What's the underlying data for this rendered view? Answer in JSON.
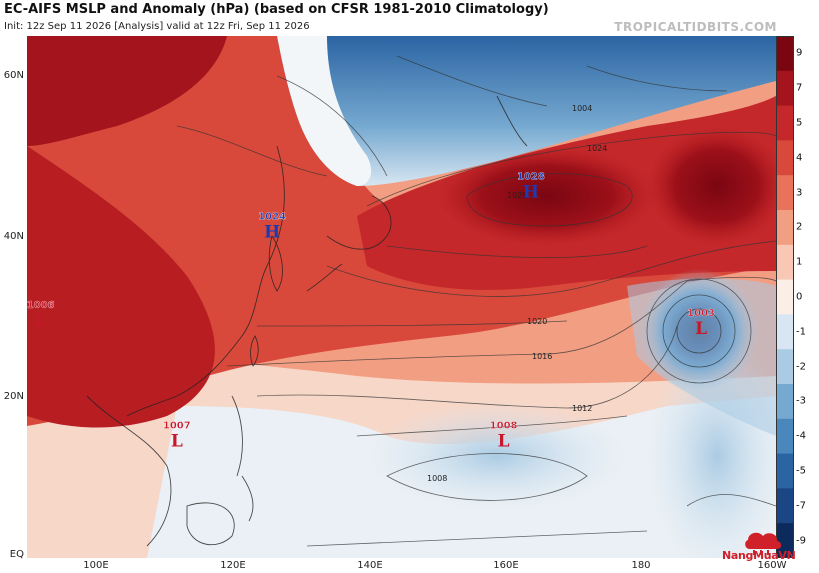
{
  "header": {
    "title": "EC-AIFS MSLP and Anomaly (hPa) (based on CFSR 1981-2010 Climatology)",
    "subtitle": "Init: 12z Sep 11 2026   [Analysis]   valid at 12z Fri, Sep 11 2026",
    "brand": "TROPICALTIDBITS.COM"
  },
  "axes": {
    "lat_labels": [
      "60N",
      "40N",
      "20N",
      "EQ"
    ],
    "lon_labels": [
      "100E",
      "120E",
      "140E",
      "160E",
      "180",
      "160W"
    ]
  },
  "colorbar": {
    "labels": [
      "9",
      "7",
      "5",
      "4",
      "3",
      "2",
      "1",
      "0",
      "-1",
      "-2",
      "-3",
      "-4",
      "-5",
      "-7",
      "-9"
    ],
    "colors": [
      "#7a0612",
      "#a3141c",
      "#c4282a",
      "#d9493b",
      "#e8735a",
      "#f29e83",
      "#f8c8b4",
      "#fbeee6",
      "#d7e6f2",
      "#aacbe3",
      "#76a9d0",
      "#4a87bc",
      "#2b64a3",
      "#1a4686",
      "#0d2a5c"
    ]
  },
  "pressure_centers": [
    {
      "kind": "H",
      "value": "1028",
      "lat": 46,
      "lon": 164,
      "color": "#1f3ab0"
    },
    {
      "kind": "H",
      "value": "1024",
      "lat": 41,
      "lon": 126,
      "color": "#1f3ab0"
    },
    {
      "kind": "L",
      "value": "1003",
      "lat": 29,
      "lon": -171,
      "color": "#c8172b"
    },
    {
      "kind": "L",
      "value": "1007",
      "lat": 15,
      "lon": 112,
      "color": "#c8172b"
    },
    {
      "kind": "L",
      "value": "1008",
      "lat": 15,
      "lon": 160,
      "color": "#c8172b"
    },
    {
      "kind": "L",
      "value": "1006",
      "lat": 30,
      "lon": 92,
      "color": "#c8172b"
    }
  ],
  "isobar_labels": [
    "1028",
    "1024",
    "1020",
    "1016",
    "1012",
    "1008",
    "1004"
  ],
  "watermark": {
    "text": "NangMuaVN"
  }
}
